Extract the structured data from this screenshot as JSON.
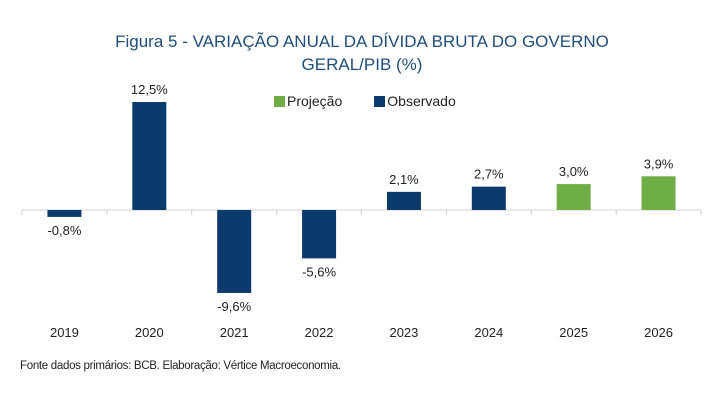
{
  "chart_data": {
    "type": "bar",
    "title": "Figura 5 - VARIAÇÃO ANUAL DA DÍVIDA BRUTA DO GOVERNO GERAL/PIB (%)",
    "title_lines": [
      "Figura 5 - VARIAÇÃO ANUAL DA DÍVIDA BRUTA DO GOVERNO",
      "GERAL/PIB (%)"
    ],
    "categories": [
      "2019",
      "2020",
      "2021",
      "2022",
      "2023",
      "2024",
      "2025",
      "2026"
    ],
    "values": [
      -0.8,
      12.5,
      -9.6,
      -5.6,
      2.1,
      2.7,
      3.0,
      3.9
    ],
    "labels": [
      "-0,8%",
      "12,5%",
      "-9,6%",
      "-5,6%",
      "2,1%",
      "2,7%",
      "3,0%",
      "3,9%"
    ],
    "series_type": [
      "Observado",
      "Observado",
      "Observado",
      "Observado",
      "Observado",
      "Observado",
      "Projeção",
      "Projeção"
    ],
    "legend": [
      {
        "name": "Projeção",
        "color": "#70ad47"
      },
      {
        "name": "Observado",
        "color": "#0b3a6b"
      }
    ],
    "legend_position": "top-center",
    "xlabel": "",
    "ylabel": "",
    "ylim": [
      -12,
      13
    ],
    "grid": false,
    "y_axis_visible": false
  },
  "footer": "Fonte dados primários: BCB. Elaboração: Vértice Macroeconomia."
}
